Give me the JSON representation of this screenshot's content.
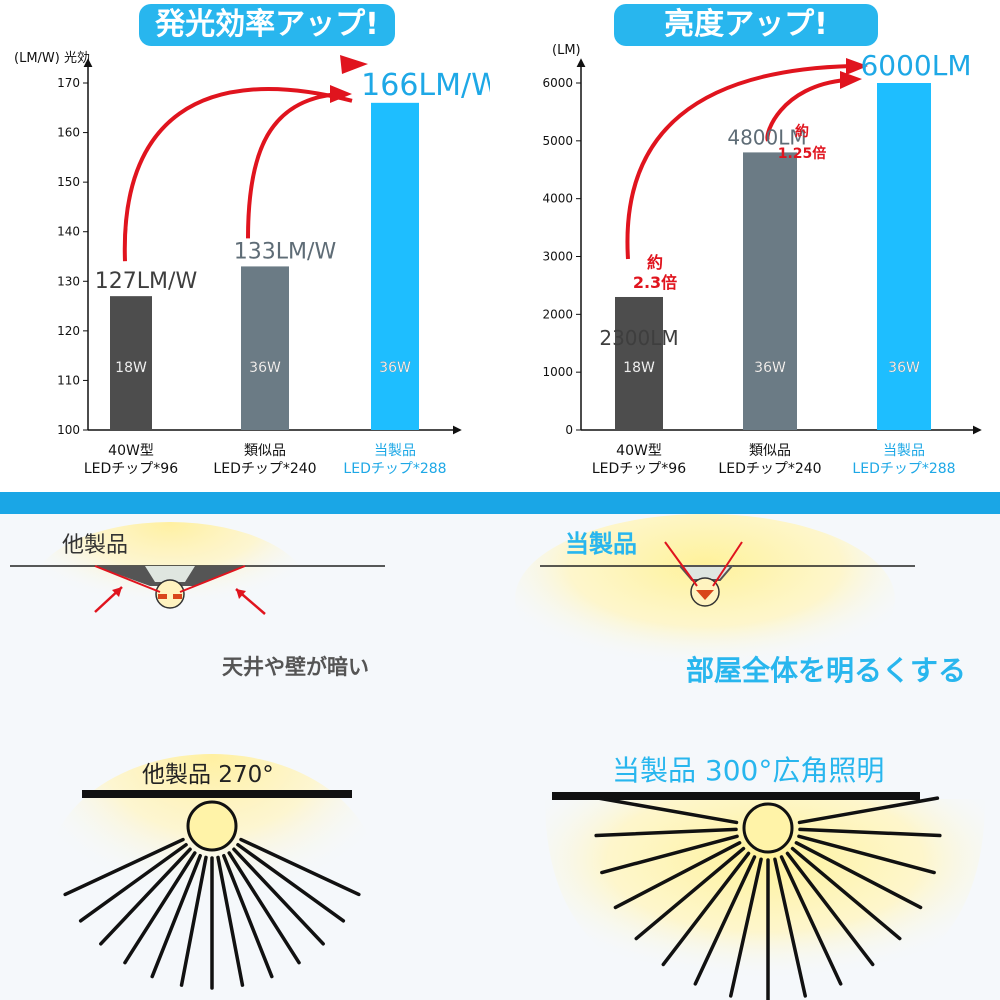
{
  "chart_data": [
    {
      "type": "bar",
      "title": "発光効率アップ!",
      "ylabel": "(LM/W) 光効",
      "ylim": [
        100,
        170
      ],
      "yticks": [
        100,
        110,
        120,
        130,
        140,
        150,
        160,
        170
      ],
      "categories": [
        {
          "line1": "40W型",
          "line2": "LEDチップ*96"
        },
        {
          "line1": "類似品",
          "line2": "LEDチップ*240"
        },
        {
          "line1": "当製品",
          "line2": "LEDチップ*288"
        }
      ],
      "values": [
        127,
        133,
        166
      ],
      "value_labels": [
        "127LM/W",
        "133LM/W",
        "166LM/W"
      ],
      "inner_labels": [
        "18W",
        "36W",
        "36W"
      ],
      "colors": [
        "#4d4d4d",
        "#6b7b85",
        "#1ebeff"
      ]
    },
    {
      "type": "bar",
      "title": "亮度アップ!",
      "ylabel": "(LM)",
      "ylim": [
        0,
        6000
      ],
      "yticks": [
        0,
        1000,
        2000,
        3000,
        4000,
        5000,
        6000
      ],
      "categories": [
        {
          "line1": "40W型",
          "line2": "LEDチップ*96"
        },
        {
          "line1": "類似品",
          "line2": "LEDチップ*240"
        },
        {
          "line1": "当製品",
          "line2": "LEDチップ*288"
        }
      ],
      "values": [
        2300,
        4800,
        6000
      ],
      "value_labels": [
        "2300LM",
        "4800LM",
        "6000LM"
      ],
      "inner_labels": [
        "18W",
        "36W",
        "36W"
      ],
      "colors": [
        "#4d4d4d",
        "#6b7b85",
        "#1ebeff"
      ],
      "annotations": [
        {
          "line1": "約",
          "line2": "2.3倍"
        },
        {
          "line1": "約",
          "line2": "1.25倍"
        }
      ]
    }
  ],
  "lower": {
    "other_product": "他製品",
    "our_product": "当製品",
    "other_caption": "天井や壁が暗い",
    "our_caption": "部屋全体を明るくする",
    "other_angle": "他製品 270°",
    "our_angle": "当製品 300°広角照明"
  },
  "colors": {
    "accent": "#28b6ee",
    "red": "#e0141e",
    "glow": "#fff3a0"
  }
}
